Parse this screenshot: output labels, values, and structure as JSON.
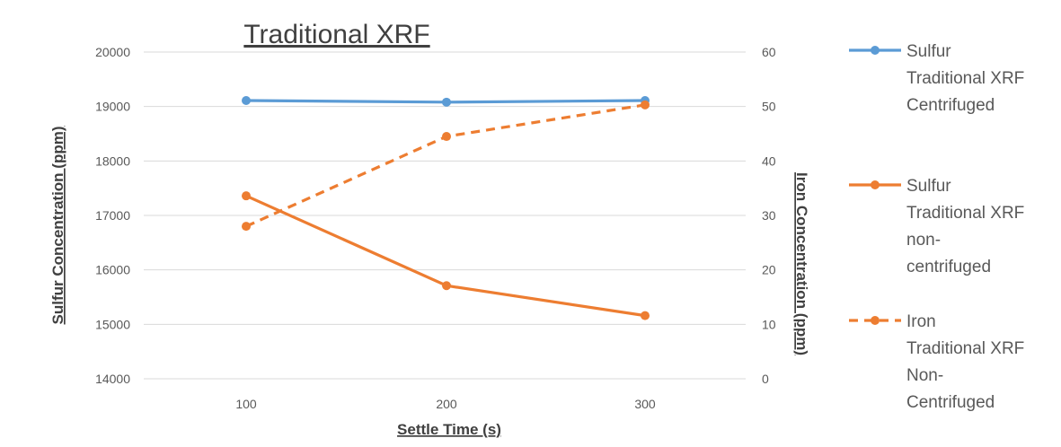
{
  "chart_data": {
    "type": "line",
    "title": "Traditional XRF",
    "xlabel": "Settle Time (s)",
    "ylabel": "Sulfur Concentration (ppm)",
    "y2label": "Iron Concentration (ppm)",
    "categories": [
      "100",
      "200",
      "300"
    ],
    "ylim": [
      14000,
      20000
    ],
    "y2lim": [
      0,
      60
    ],
    "yticks": [
      "14000",
      "15000",
      "16000",
      "17000",
      "18000",
      "19000",
      "20000"
    ],
    "y2ticks": [
      "0",
      "10",
      "20",
      "30",
      "40",
      "50",
      "60"
    ],
    "grid": true,
    "legend_position": "right",
    "series": [
      {
        "name_lines": [
          "Sulfur",
          "Traditional XRF",
          "Centrifuged"
        ],
        "axis": "left",
        "values": [
          19110,
          19080,
          19110
        ],
        "color": "#5B9BD5",
        "dash": "solid"
      },
      {
        "name_lines": [
          "Sulfur",
          "Traditional XRF",
          "non-",
          "centrifuged"
        ],
        "axis": "left",
        "values": [
          17360,
          15710,
          15160
        ],
        "color": "#ED7D31",
        "dash": "solid"
      },
      {
        "name_lines": [
          "Iron",
          "Traditional XRF",
          "Non-",
          "Centrifuged"
        ],
        "axis": "right",
        "values": [
          28,
          44.5,
          50.3
        ],
        "color": "#ED7D31",
        "dash": "dashed"
      }
    ]
  }
}
